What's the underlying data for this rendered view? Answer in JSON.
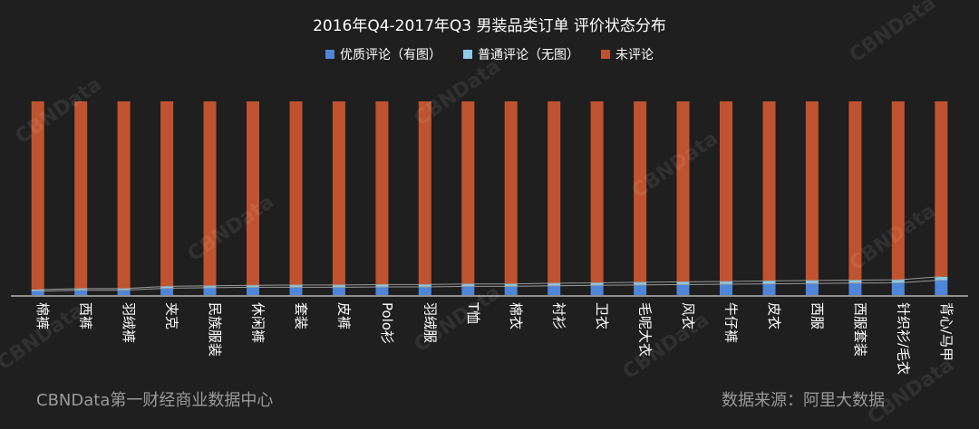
{
  "chart_data": {
    "type": "bar",
    "stacked": true,
    "title": "2016年Q4-2017年Q3 男装品类订单 评价状态分布",
    "categories": [
      "棉裤",
      "西裤",
      "羽绒裤",
      "夹克",
      "民族服装",
      "休闲裤",
      "套装",
      "皮裤",
      "Polo衫",
      "羽绒服",
      "T恤",
      "棉衣",
      "衬衫",
      "卫衣",
      "毛呢大衣",
      "风衣",
      "牛仔裤",
      "皮衣",
      "西服",
      "西服套装",
      "针织衫/毛衣",
      "背心/马甲"
    ],
    "series": [
      {
        "name": "优质评论（有图）",
        "color": "#4f86d9",
        "values": [
          2.0,
          2.5,
          2.5,
          3.5,
          3.8,
          4.0,
          4.0,
          4.0,
          4.2,
          4.2,
          4.5,
          4.5,
          4.8,
          5.0,
          5.2,
          5.4,
          5.6,
          5.8,
          6.0,
          6.2,
          6.3,
          7.7
        ]
      },
      {
        "name": "普通评论（无图）",
        "color": "#8ecae6",
        "values": [
          0.8,
          0.8,
          0.8,
          1.0,
          1.0,
          1.0,
          1.2,
          1.2,
          1.2,
          1.2,
          1.2,
          1.2,
          1.3,
          1.3,
          1.4,
          1.4,
          1.4,
          1.5,
          1.5,
          1.5,
          1.6,
          1.8
        ]
      },
      {
        "name": "未评论",
        "color": "#c0532f",
        "values": [
          97.2,
          96.7,
          96.7,
          95.5,
          95.2,
          95.0,
          94.8,
          94.8,
          94.6,
          94.6,
          94.3,
          94.3,
          93.9,
          93.7,
          93.4,
          93.2,
          93.0,
          92.7,
          92.5,
          92.3,
          92.1,
          90.5
        ]
      }
    ],
    "ylim": [
      0,
      100
    ],
    "grid": false,
    "legend_position": "top"
  },
  "footer": {
    "source_left": "CBNData第一财经商业数据中心",
    "source_right": "数据来源：阿里大数据"
  },
  "watermark_text": "CBNData"
}
